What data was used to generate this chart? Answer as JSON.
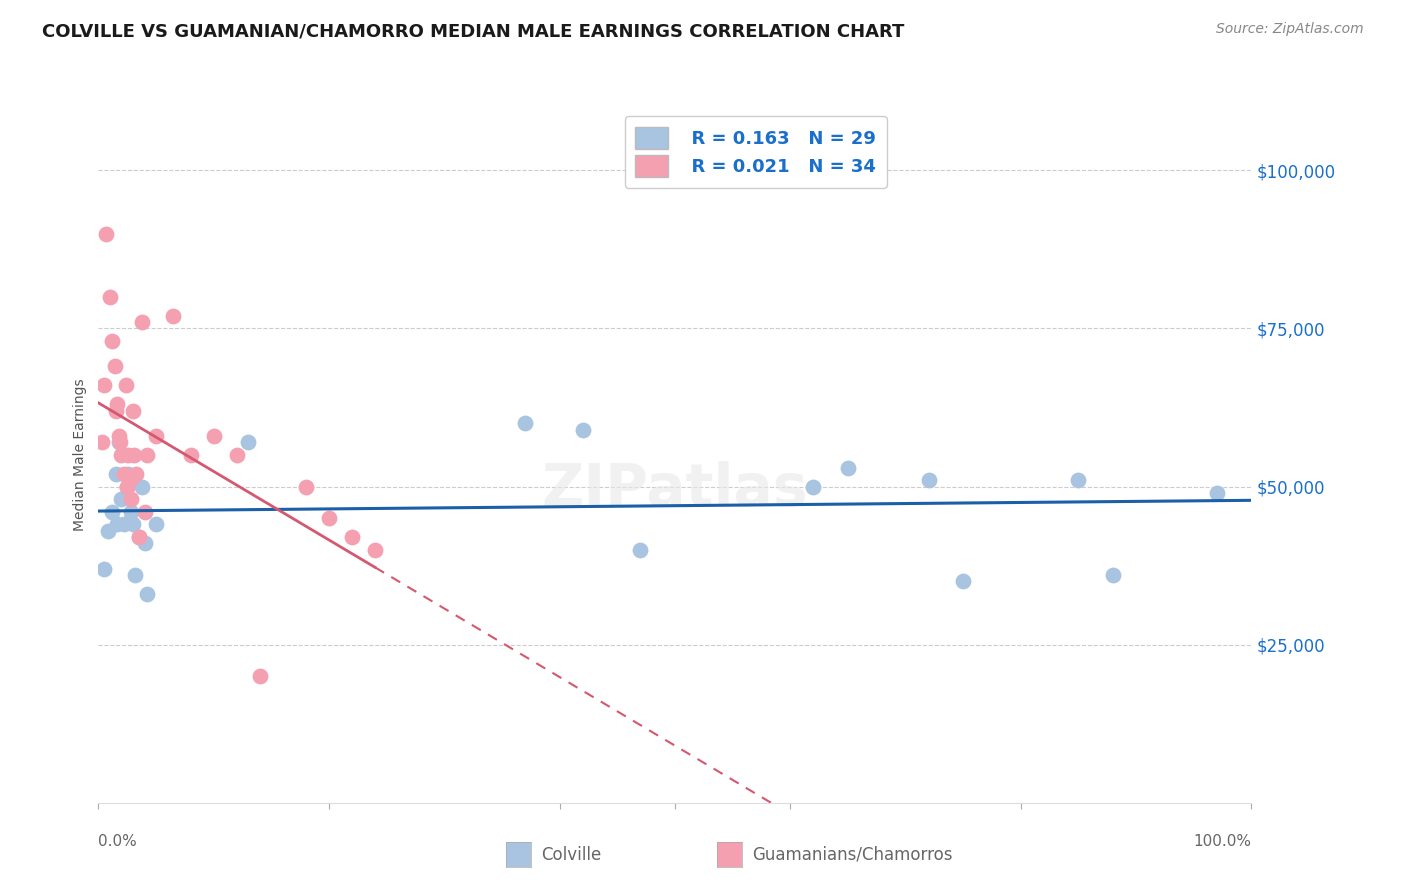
{
  "title": "COLVILLE VS GUAMANIAN/CHAMORRO MEDIAN MALE EARNINGS CORRELATION CHART",
  "source": "Source: ZipAtlas.com",
  "ylabel": "Median Male Earnings",
  "ytick_values": [
    25000,
    50000,
    75000,
    100000
  ],
  "ylim": [
    0,
    110000
  ],
  "xlim": [
    0.0,
    1.0
  ],
  "legend_blue_r": "0.163",
  "legend_blue_n": "29",
  "legend_pink_r": "0.021",
  "legend_pink_n": "34",
  "colville_x": [
    0.005,
    0.008,
    0.012,
    0.015,
    0.016,
    0.018,
    0.02,
    0.022,
    0.025,
    0.026,
    0.028,
    0.03,
    0.032,
    0.035,
    0.038,
    0.04,
    0.042,
    0.05,
    0.13,
    0.37,
    0.42,
    0.47,
    0.62,
    0.65,
    0.72,
    0.75,
    0.85,
    0.88,
    0.97
  ],
  "colville_y": [
    37000,
    43000,
    46000,
    52000,
    44000,
    57000,
    48000,
    44000,
    50000,
    52000,
    46000,
    44000,
    36000,
    42000,
    50000,
    41000,
    33000,
    44000,
    57000,
    60000,
    59000,
    40000,
    50000,
    53000,
    51000,
    35000,
    51000,
    36000,
    49000
  ],
  "guamanian_x": [
    0.003,
    0.005,
    0.007,
    0.01,
    0.012,
    0.014,
    0.015,
    0.016,
    0.018,
    0.019,
    0.02,
    0.022,
    0.024,
    0.025,
    0.026,
    0.027,
    0.028,
    0.03,
    0.031,
    0.033,
    0.035,
    0.038,
    0.04,
    0.042,
    0.05,
    0.065,
    0.08,
    0.1,
    0.12,
    0.14,
    0.18,
    0.2,
    0.22,
    0.24
  ],
  "guamanian_y": [
    57000,
    66000,
    90000,
    80000,
    73000,
    69000,
    62000,
    63000,
    58000,
    57000,
    55000,
    52000,
    66000,
    50000,
    55000,
    51000,
    48000,
    62000,
    55000,
    52000,
    42000,
    76000,
    46000,
    55000,
    58000,
    77000,
    55000,
    58000,
    55000,
    20000,
    50000,
    45000,
    42000,
    40000
  ],
  "blue_scatter_color": "#a8c4e0",
  "pink_scatter_color": "#f4a0b0",
  "blue_line_color": "#1a5fa8",
  "pink_line_color": "#d45870",
  "background_color": "#ffffff",
  "grid_color": "#cccccc",
  "right_label_color": "#1a6fcc",
  "title_color": "#1a1a1a",
  "axis_label_color": "#555555",
  "tick_label_color": "#666666"
}
